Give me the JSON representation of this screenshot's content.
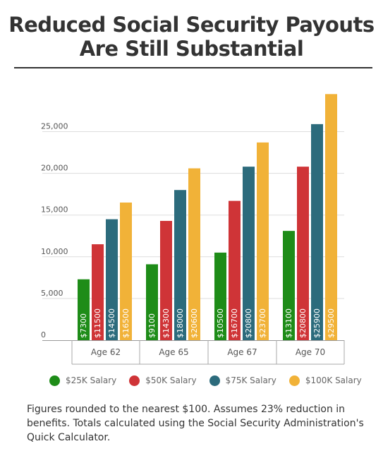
{
  "title": {
    "line1": "Reduced Social Security Payouts",
    "line2": "Are Still Substantial"
  },
  "chart_data": {
    "type": "bar",
    "categories": [
      "Age 62",
      "Age 65",
      "Age 67",
      "Age 70"
    ],
    "series": [
      {
        "name": "$25K Salary",
        "color": "#1e8c18",
        "values": [
          7300,
          9100,
          10500,
          13100
        ],
        "labels": [
          "$7300",
          "$9100",
          "$10500",
          "$13100"
        ]
      },
      {
        "name": "$50K Salary",
        "color": "#cf3437",
        "values": [
          11500,
          14300,
          16700,
          20800
        ],
        "labels": [
          "$11500",
          "$14300",
          "$16700",
          "$20800"
        ]
      },
      {
        "name": "$75K Salary",
        "color": "#2c6b7c",
        "values": [
          14500,
          18000,
          20800,
          25900
        ],
        "labels": [
          "$14500",
          "$18000",
          "$20800",
          "$25900"
        ]
      },
      {
        "name": "$100K Salary",
        "color": "#f1b238",
        "values": [
          16500,
          20600,
          23700,
          29500
        ],
        "labels": [
          "$16500",
          "$20600",
          "$23700",
          "$29500"
        ]
      }
    ],
    "yticks": [
      "0",
      "5,000",
      "10,000",
      "15,000",
      "20,000",
      "25,000"
    ],
    "ytick_values": [
      0,
      5000,
      10000,
      15000,
      20000,
      25000
    ],
    "ylim": [
      0,
      30000
    ],
    "grid": true,
    "legend_position": "bottom"
  },
  "footnote": "Figures rounded to the nearest $100. Assumes 23% reduction in benefits. Totals calculated using the Social Security Administration's Quick Calculator."
}
